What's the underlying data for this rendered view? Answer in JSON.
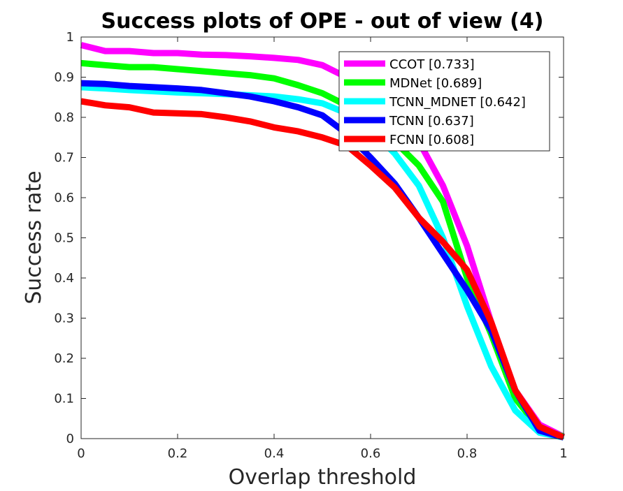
{
  "chart_data": {
    "type": "line",
    "title": "Success plots of OPE - out of view (4)",
    "xlabel": "Overlap threshold",
    "ylabel": "Success rate",
    "xlim": [
      0,
      1
    ],
    "ylim": [
      0,
      1
    ],
    "xticks": [
      "0",
      "0.2",
      "0.4",
      "0.6",
      "0.8",
      "1"
    ],
    "yticks": [
      "0",
      "0.1",
      "0.2",
      "0.3",
      "0.4",
      "0.5",
      "0.6",
      "0.7",
      "0.8",
      "0.9",
      "1"
    ],
    "grid": false,
    "legend_position": "top-right",
    "x": [
      0,
      0.05,
      0.1,
      0.15,
      0.2,
      0.25,
      0.3,
      0.35,
      0.4,
      0.45,
      0.5,
      0.55,
      0.6,
      0.65,
      0.7,
      0.75,
      0.8,
      0.85,
      0.9,
      0.95,
      1.0
    ],
    "series": [
      {
        "name": "CCOT [0.733]",
        "color": "#ff00ff",
        "values": [
          0.98,
          0.965,
          0.965,
          0.96,
          0.96,
          0.956,
          0.955,
          0.952,
          0.948,
          0.943,
          0.93,
          0.9,
          0.86,
          0.8,
          0.74,
          0.63,
          0.48,
          0.29,
          0.12,
          0.035,
          0.005
        ]
      },
      {
        "name": "MDNet [0.689]",
        "color": "#00ff00",
        "values": [
          0.935,
          0.93,
          0.925,
          0.925,
          0.92,
          0.915,
          0.91,
          0.905,
          0.897,
          0.88,
          0.86,
          0.83,
          0.79,
          0.74,
          0.68,
          0.59,
          0.4,
          0.26,
          0.1,
          0.025,
          0.005
        ]
      },
      {
        "name": "TCNN_MDNET [0.642]",
        "color": "#00ffff",
        "values": [
          0.875,
          0.872,
          0.868,
          0.865,
          0.862,
          0.86,
          0.858,
          0.855,
          0.852,
          0.845,
          0.835,
          0.81,
          0.77,
          0.71,
          0.63,
          0.5,
          0.33,
          0.18,
          0.07,
          0.015,
          0.003
        ]
      },
      {
        "name": "TCNN [0.637]",
        "color": "#0000ff",
        "values": [
          0.885,
          0.883,
          0.878,
          0.875,
          0.872,
          0.868,
          0.86,
          0.852,
          0.84,
          0.825,
          0.805,
          0.76,
          0.7,
          0.635,
          0.55,
          0.46,
          0.37,
          0.27,
          0.12,
          0.02,
          0.003
        ]
      },
      {
        "name": "FCNN [0.608]",
        "color": "#ff0000",
        "values": [
          0.84,
          0.83,
          0.825,
          0.812,
          0.81,
          0.808,
          0.8,
          0.79,
          0.775,
          0.765,
          0.75,
          0.73,
          0.68,
          0.625,
          0.55,
          0.49,
          0.42,
          0.29,
          0.12,
          0.03,
          0.003
        ]
      }
    ]
  }
}
